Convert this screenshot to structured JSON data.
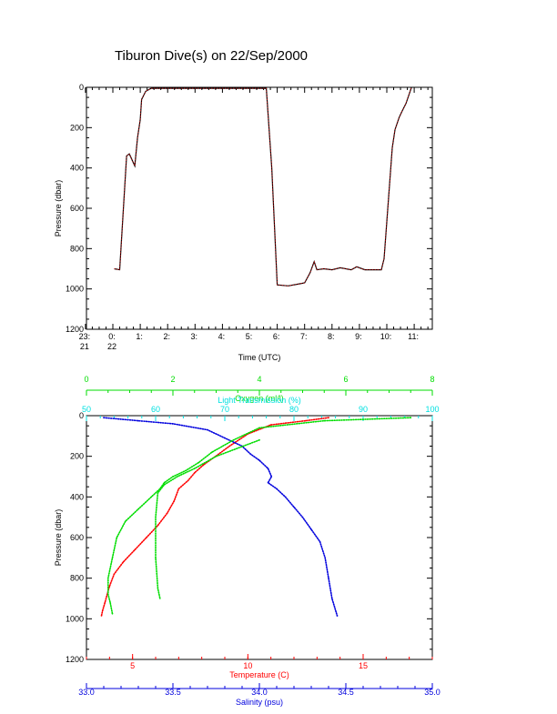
{
  "title": "Tiburon Dive(s) on 22/Sep/2000",
  "chart_data": [
    {
      "type": "line",
      "ylabel": "Pressure (dbar)",
      "xlabel": "Time (UTC)",
      "y_ticks": [
        "0",
        "200",
        "400",
        "600",
        "800",
        "1000",
        "1200"
      ],
      "ylim": [
        1200,
        0
      ],
      "x_ticks": [
        {
          "label": "23:",
          "sub": "21"
        },
        {
          "label": "0:",
          "sub": "22"
        },
        {
          "label": "1:",
          "sub": ""
        },
        {
          "label": "2:",
          "sub": ""
        },
        {
          "label": "3:",
          "sub": ""
        },
        {
          "label": "4:",
          "sub": ""
        },
        {
          "label": "5:",
          "sub": ""
        },
        {
          "label": "6:",
          "sub": ""
        },
        {
          "label": "7:",
          "sub": ""
        },
        {
          "label": "8:",
          "sub": ""
        },
        {
          "label": "9:",
          "sub": ""
        },
        {
          "label": "10:",
          "sub": ""
        },
        {
          "label": "11:",
          "sub": ""
        }
      ],
      "colors": {
        "trace": "#000000",
        "overlay": "#ff0000",
        "axis": "#000000"
      },
      "series": [
        {
          "x_hours": [
            0.05,
            0.25,
            0.5,
            0.6,
            0.8,
            0.9,
            1.0,
            1.05,
            1.2,
            1.4,
            2.0,
            3.0,
            4.0,
            5.0,
            5.5,
            5.6,
            5.8,
            6.0,
            6.4,
            6.8,
            7.0,
            7.2,
            7.35,
            7.45,
            7.7,
            8.0,
            8.3,
            8.7,
            8.9,
            9.2,
            9.5,
            9.8,
            9.9,
            10.2,
            10.3,
            10.45,
            10.55,
            10.7,
            10.85,
            10.9
          ],
          "pressure_dbar": [
            900,
            905,
            340,
            330,
            390,
            250,
            160,
            60,
            20,
            5,
            5,
            5,
            5,
            5,
            5,
            5,
            400,
            980,
            985,
            975,
            970,
            920,
            865,
            905,
            900,
            905,
            895,
            905,
            890,
            905,
            905,
            905,
            850,
            300,
            210,
            150,
            120,
            80,
            20,
            0
          ]
        }
      ]
    },
    {
      "type": "scatter",
      "ylabel": "Pressure (dbar)",
      "y_ticks": [
        "0",
        "200",
        "400",
        "600",
        "800",
        "1000",
        "1200"
      ],
      "ylim": [
        1200,
        0
      ],
      "axes": {
        "oxygen": {
          "label": "Oxygen (ml/l)",
          "range": [
            0,
            8
          ],
          "ticks": [
            "0",
            "2",
            "4",
            "6",
            "8"
          ],
          "color": "#00dd00"
        },
        "transmission": {
          "label": "Light Transmission (%)",
          "range": [
            50,
            100
          ],
          "ticks": [
            "50",
            "60",
            "70",
            "80",
            "90",
            "100"
          ],
          "color": "#00e0e0"
        },
        "temperature": {
          "label": "Temperature (C)",
          "range": [
            3,
            18
          ],
          "ticks": [
            "5",
            "10",
            "15"
          ],
          "color": "#ff0000"
        },
        "salinity": {
          "label": "Salinity (psu)",
          "range": [
            33.0,
            35.0
          ],
          "ticks": [
            "33.0",
            "33.5",
            "34.0",
            "34.5",
            "35.0"
          ],
          "color": "#0000dd"
        }
      },
      "series": [
        {
          "axis": "temperature",
          "color": "#ff0000",
          "x": [
            13.5,
            12.5,
            11.0,
            10.0,
            9.2,
            8.6,
            8.1,
            7.7,
            7.4,
            7.0,
            6.8,
            6.5,
            6.1,
            5.6,
            5.1,
            4.6,
            4.2,
            4.0,
            3.9,
            3.8,
            3.7,
            3.65
          ],
          "y": [
            10,
            25,
            45,
            90,
            150,
            200,
            240,
            280,
            320,
            360,
            420,
            480,
            540,
            600,
            660,
            720,
            780,
            840,
            880,
            920,
            960,
            985
          ]
        },
        {
          "axis": "salinity",
          "color": "#0000dd",
          "x": [
            33.1,
            33.3,
            33.5,
            33.7,
            33.8,
            33.9,
            33.95,
            34.0,
            34.05,
            34.07,
            34.05,
            34.1,
            34.15,
            34.2,
            34.25,
            34.3,
            34.35,
            34.38,
            34.4,
            34.42,
            34.45
          ],
          "y": [
            10,
            25,
            40,
            70,
            110,
            150,
            190,
            220,
            260,
            300,
            330,
            360,
            400,
            450,
            500,
            560,
            620,
            700,
            800,
            900,
            985
          ]
        },
        {
          "axis": "oxygen",
          "color": "#00dd00",
          "x": [
            7.5,
            5.5,
            4.0,
            3.4,
            2.9,
            2.6,
            2.3,
            2.0,
            1.8,
            1.7,
            1.5,
            1.2,
            0.9,
            0.7,
            0.6,
            0.5,
            0.5,
            0.55,
            0.6
          ],
          "y": [
            10,
            25,
            60,
            120,
            180,
            230,
            270,
            300,
            330,
            360,
            400,
            460,
            520,
            600,
            700,
            800,
            880,
            920,
            975
          ]
        },
        {
          "axis": "oxygen",
          "color": "#00dd00",
          "x": [
            4.0,
            3.0,
            2.5,
            2.1,
            1.8,
            1.65,
            1.6,
            1.6,
            1.65,
            1.7
          ],
          "y": [
            120,
            200,
            260,
            300,
            340,
            380,
            500,
            700,
            850,
            900
          ]
        }
      ]
    }
  ]
}
